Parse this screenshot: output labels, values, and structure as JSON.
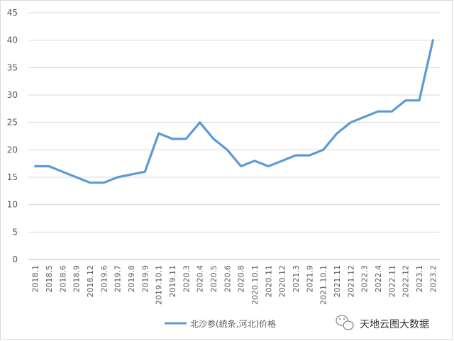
{
  "chart_data": {
    "type": "line",
    "title": "",
    "xlabel": "",
    "ylabel": "",
    "ylim": [
      0,
      45
    ],
    "yticks": [
      0,
      5,
      10,
      15,
      20,
      25,
      30,
      35,
      40,
      45
    ],
    "grid": "horizontal",
    "legend_position": "bottom",
    "categories": [
      "2018.1",
      "2018.5",
      "2018.6",
      "2018.9",
      "2018.12",
      "2019.6",
      "2019.7",
      "2019.8",
      "2019.9",
      "2019.10.1",
      "2019.11",
      "2020.3",
      "2020.4",
      "2020.5",
      "2020.6",
      "2020.8",
      "2020.10.1",
      "2020.11",
      "2020.12",
      "2021.3",
      "2021.9",
      "2021.10.1",
      "2021.11",
      "2021.12",
      "2022.3",
      "2022.4",
      "2022.11",
      "2022.12",
      "2023.1",
      "2023.2"
    ],
    "series": [
      {
        "name": "北沙参(统条,河北)价格",
        "color": "#5b9bd5",
        "values": [
          17,
          17,
          16,
          15,
          14,
          14,
          15,
          15.5,
          16,
          23,
          22,
          22,
          25,
          22,
          20,
          17,
          18,
          17,
          18,
          19,
          19,
          20,
          23,
          25,
          26,
          27,
          27,
          29,
          29,
          40
        ]
      }
    ]
  },
  "watermark": {
    "text": "天地云图大数据",
    "icon": "wechat-icon"
  }
}
